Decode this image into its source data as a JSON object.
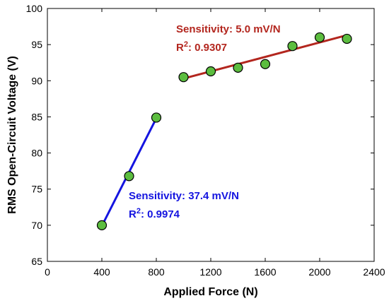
{
  "chart_data": {
    "type": "scatter",
    "xlabel": "Applied Force (N)",
    "ylabel": "RMS Open-Circuit Voltage (V)",
    "xlim": [
      0,
      2400
    ],
    "ylim": [
      65,
      100
    ],
    "xticks": [
      "0",
      "400",
      "800",
      "1200",
      "1600",
      "2000",
      "2400"
    ],
    "yticks": [
      "65",
      "70",
      "75",
      "80",
      "85",
      "90",
      "95",
      "100"
    ],
    "grid": false,
    "marker_color": "#5cbd3f",
    "series": [
      {
        "x": [
          400,
          600,
          800
        ],
        "y": [
          70.0,
          76.8,
          84.9
        ],
        "fit": {
          "x": [
            400,
            800
          ],
          "y": [
            69.9,
            84.8
          ],
          "color": "#1414e0"
        },
        "annotation": {
          "sensitivity": "Sensitivity: 37.4 mV/N",
          "r2_prefix": "R",
          "r2_sup": "2",
          "r2_value": ": 0.9974",
          "color": "#1414e0"
        }
      },
      {
        "x": [
          1000,
          1200,
          1400,
          1600,
          1800,
          2000,
          2200
        ],
        "y": [
          90.5,
          91.3,
          91.8,
          92.3,
          94.8,
          96.0,
          95.8
        ],
        "fit": {
          "x": [
            1000,
            2200
          ],
          "y": [
            90.3,
            96.3
          ],
          "color": "#b3261e"
        },
        "annotation": {
          "sensitivity": "Sensitivity: 5.0 mV/N",
          "r2_prefix": "R",
          "r2_sup": "2",
          "r2_value": ": 0.9307",
          "color": "#b3261e"
        }
      }
    ]
  }
}
